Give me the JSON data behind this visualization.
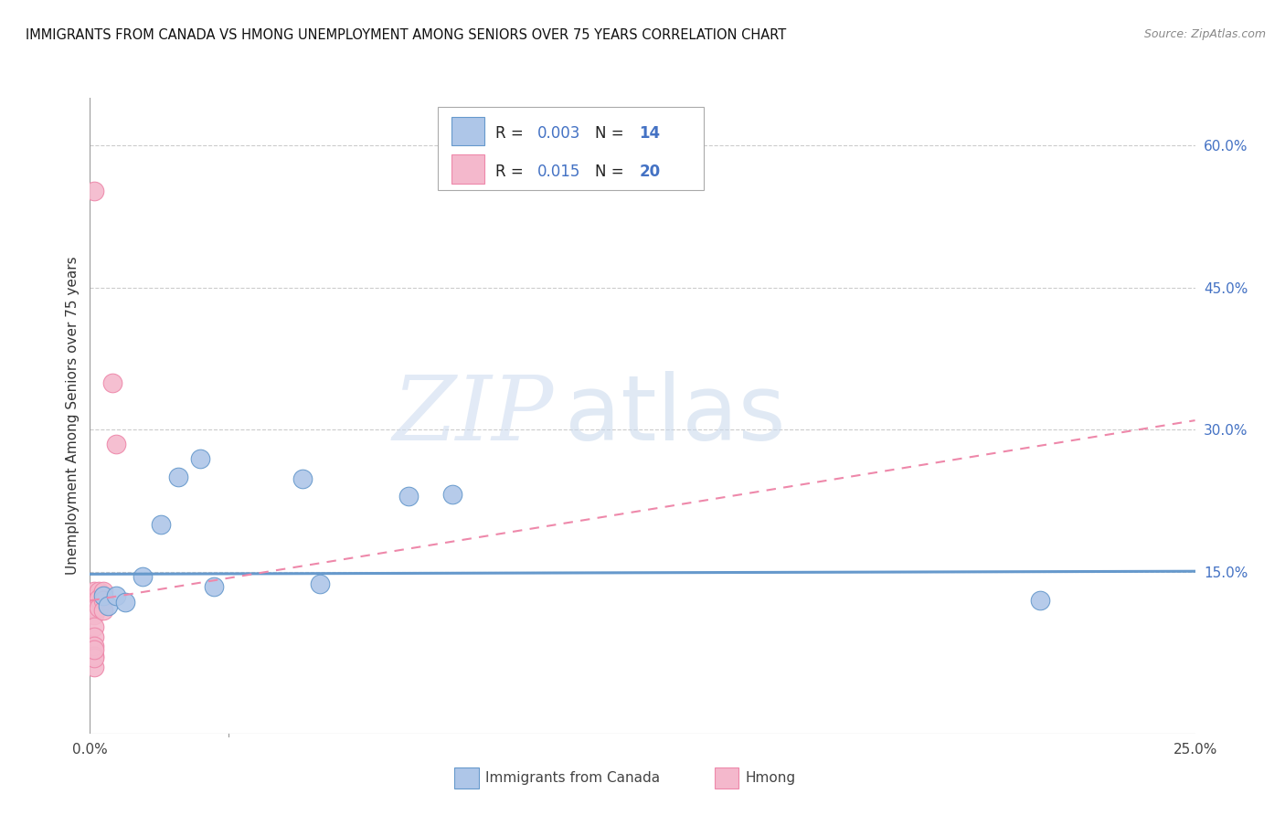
{
  "title": "IMMIGRANTS FROM CANADA VS HMONG UNEMPLOYMENT AMONG SENIORS OVER 75 YEARS CORRELATION CHART",
  "source": "Source: ZipAtlas.com",
  "ylabel": "Unemployment Among Seniors over 75 years",
  "xlim": [
    0.0,
    0.25
  ],
  "ylim": [
    -0.02,
    0.65
  ],
  "x_ticks": [
    0.0,
    0.05,
    0.1,
    0.15,
    0.2,
    0.25
  ],
  "x_tick_labels": [
    "0.0%",
    "",
    "",
    "",
    "",
    "25.0%"
  ],
  "y_ticks_right": [
    0.15,
    0.3,
    0.45,
    0.6
  ],
  "y_tick_labels_right": [
    "15.0%",
    "30.0%",
    "45.0%",
    "60.0%"
  ],
  "canada_scatter_x": [
    0.003,
    0.004,
    0.006,
    0.008,
    0.012,
    0.016,
    0.02,
    0.025,
    0.028,
    0.048,
    0.052,
    0.072,
    0.082,
    0.215
  ],
  "canada_scatter_y": [
    0.125,
    0.115,
    0.125,
    0.118,
    0.145,
    0.2,
    0.25,
    0.27,
    0.135,
    0.248,
    0.138,
    0.23,
    0.232,
    0.12
  ],
  "hmong_scatter_x": [
    0.001,
    0.001,
    0.001,
    0.001,
    0.001,
    0.001,
    0.001,
    0.001,
    0.002,
    0.002,
    0.002,
    0.003,
    0.003,
    0.003,
    0.005,
    0.006,
    0.001,
    0.001,
    0.001,
    0.001
  ],
  "hmong_scatter_y": [
    0.13,
    0.122,
    0.113,
    0.105,
    0.092,
    0.082,
    0.072,
    0.062,
    0.13,
    0.122,
    0.113,
    0.13,
    0.12,
    0.11,
    0.35,
    0.285,
    0.552,
    0.05,
    0.06,
    0.068
  ],
  "canada_line_x": [
    0.0,
    0.25
  ],
  "canada_line_y": [
    0.148,
    0.151
  ],
  "hmong_line_x": [
    0.0,
    0.25
  ],
  "hmong_line_y": [
    0.12,
    0.31
  ],
  "canada_color": "#6699cc",
  "canada_fill": "#aec6e8",
  "hmong_color": "#ee88aa",
  "hmong_fill": "#f4b8cc",
  "watermark_zip": "ZIP",
  "watermark_atlas": "atlas",
  "background_color": "#ffffff",
  "grid_color": "#cccccc",
  "legend_r1": "R = ",
  "legend_v1": "0.003",
  "legend_n1": "  N = ",
  "legend_nv1": "14",
  "legend_r2": "R =  ",
  "legend_v2": "0.015",
  "legend_n2": "  N = ",
  "legend_nv2": "20"
}
